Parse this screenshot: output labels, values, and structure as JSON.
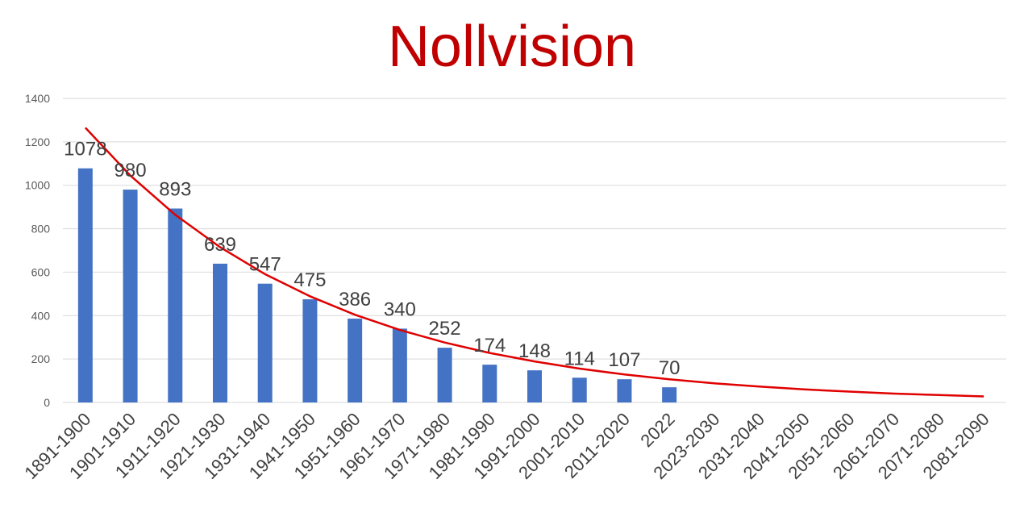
{
  "chart_data": {
    "type": "bar",
    "title": "Nollvision",
    "xlabel": "",
    "ylabel": "",
    "ylim": [
      0,
      1400
    ],
    "yticks": [
      0,
      200,
      400,
      600,
      800,
      1000,
      1200,
      1400
    ],
    "grid": true,
    "legend": "none",
    "categories": [
      "1891-1900",
      "1901-1910",
      "1911-1920",
      "1921-1930",
      "1931-1940",
      "1941-1950",
      "1951-1960",
      "1961-1970",
      "1971-1980",
      "1981-1990",
      "1991-2000",
      "2001-2010",
      "2011-2020",
      "2022",
      "2023-2030",
      "2031-2040",
      "2041-2050",
      "2051-2060",
      "2061-2070",
      "2071-2080",
      "2081-2090"
    ],
    "series": [
      {
        "values": [
          1078,
          980,
          893,
          639,
          547,
          475,
          386,
          340,
          252,
          174,
          148,
          114,
          107,
          70,
          null,
          null,
          null,
          null,
          null,
          null,
          null
        ],
        "color": "#4472c4"
      }
    ],
    "trendline": {
      "type": "exponential",
      "color": "#e00000",
      "values": [
        1265,
        1045,
        864,
        715,
        591,
        489,
        404,
        334,
        276,
        228,
        189,
        156,
        129,
        107,
        88,
        73,
        60,
        50,
        41,
        34,
        28
      ]
    }
  }
}
